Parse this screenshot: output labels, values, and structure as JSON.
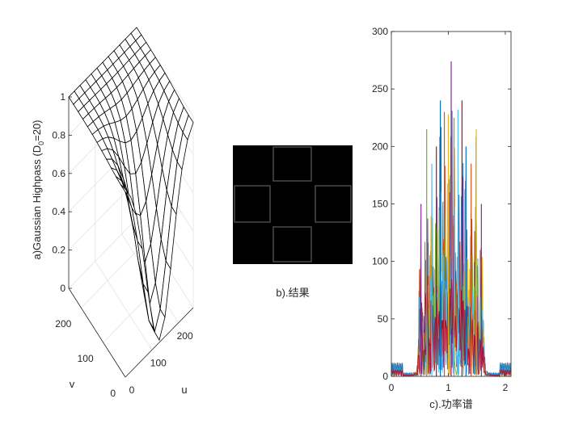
{
  "chart_data": [
    {
      "type": "surface",
      "zlabel": "a)Gaussian Highpass (D",
      "zlabel_sub": "0",
      "zlabel_tail": "=20)",
      "xlabel": "u",
      "ylabel": "v",
      "zticks": [
        "0",
        "0.2",
        "0.4",
        "0.6",
        "0.8",
        "1"
      ],
      "zlim": [
        0,
        1
      ],
      "u_ticks": [
        "0",
        "100",
        "200"
      ],
      "v_ticks": [
        "0",
        "100",
        "200"
      ],
      "u_range": [
        0,
        256
      ],
      "v_range": [
        0,
        256
      ],
      "grid": true,
      "mesh_size": 12
    },
    {
      "type": "image",
      "caption": "b).结果",
      "colormap": "gray"
    },
    {
      "type": "line",
      "xlabel": "c).功率谱",
      "ylabel": "",
      "xlim": [
        0,
        2.1
      ],
      "ylim": [
        0,
        300
      ],
      "xticks": [
        "0",
        "1",
        "2"
      ],
      "yticks": [
        "0",
        "50",
        "100",
        "150",
        "200",
        "250",
        "300"
      ],
      "peaks": [
        {
          "x": 0.52,
          "y": 150
        },
        {
          "x": 0.62,
          "y": 215
        },
        {
          "x": 0.71,
          "y": 185
        },
        {
          "x": 0.79,
          "y": 200
        },
        {
          "x": 0.86,
          "y": 240
        },
        {
          "x": 0.93,
          "y": 230
        },
        {
          "x": 1.0,
          "y": 228
        },
        {
          "x": 1.05,
          "y": 274
        },
        {
          "x": 1.1,
          "y": 225
        },
        {
          "x": 1.17,
          "y": 232
        },
        {
          "x": 1.24,
          "y": 240
        },
        {
          "x": 1.31,
          "y": 200
        },
        {
          "x": 1.4,
          "y": 185
        },
        {
          "x": 1.49,
          "y": 215
        },
        {
          "x": 1.58,
          "y": 150
        }
      ],
      "series_colors": [
        "#0072BD",
        "#D95319",
        "#EDB120",
        "#7E2F8E",
        "#77AC30",
        "#4DBEEE",
        "#A2142F"
      ]
    }
  ]
}
